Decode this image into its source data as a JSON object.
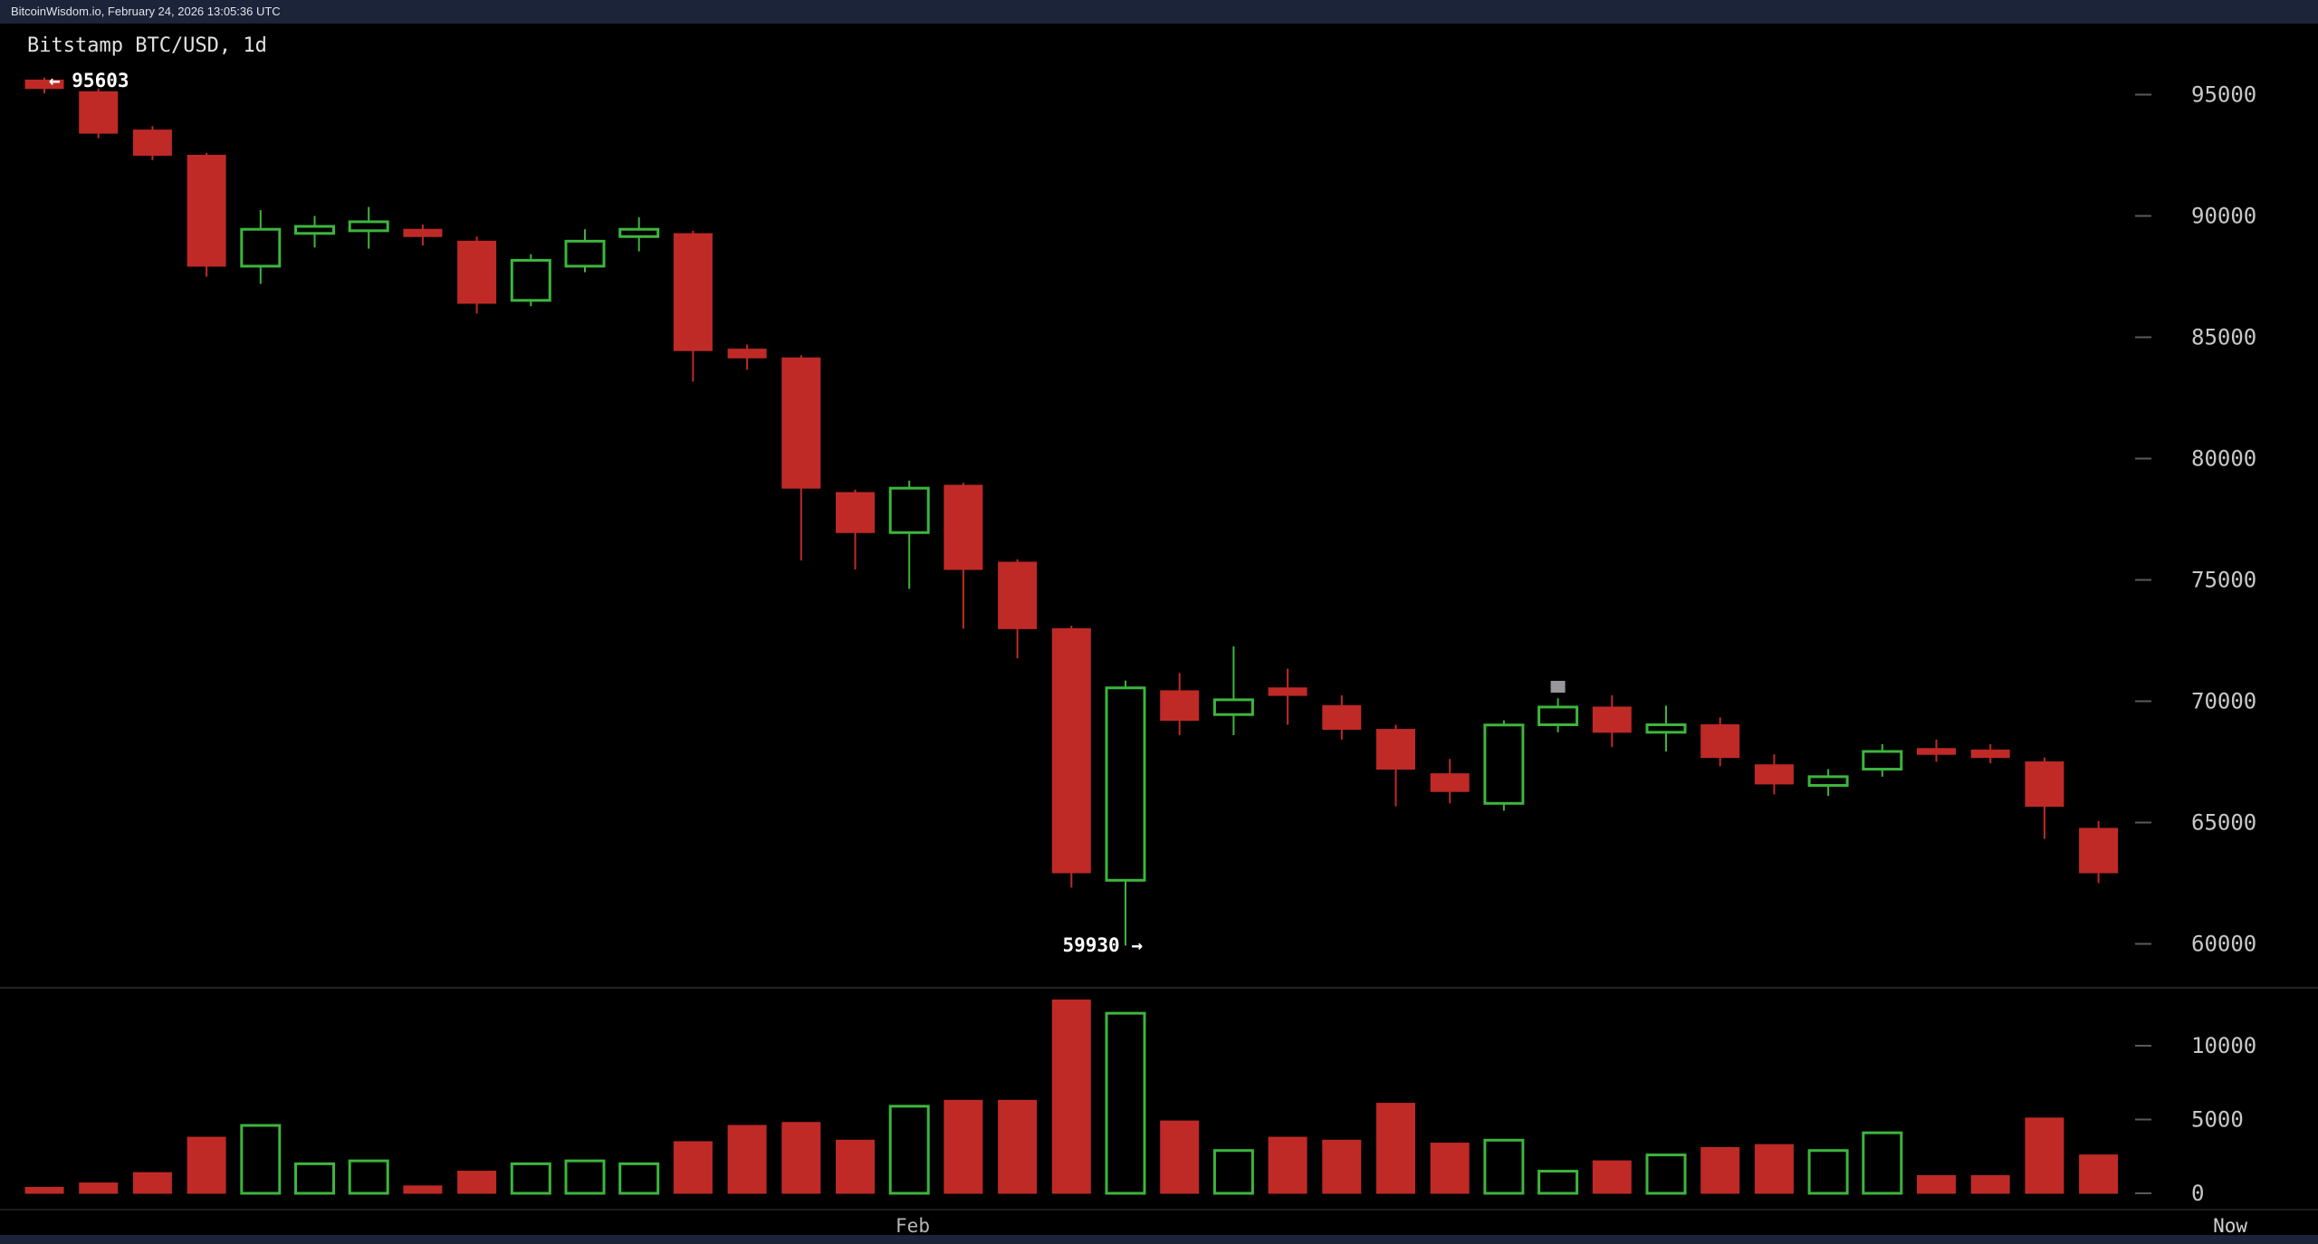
{
  "header": {
    "text": "BitcoinWisdom.io, February 24, 2026 13:05:36 UTC"
  },
  "chart_data": {
    "type": "candlestick",
    "title": "Bitstamp BTC/USD, 1d",
    "candle_format": [
      "open",
      "high",
      "low",
      "close",
      "volume"
    ],
    "candles": [
      [
        95600,
        95700,
        95050,
        95250,
        400
      ],
      [
        95120,
        95250,
        93200,
        93410,
        700
      ],
      [
        93540,
        93700,
        92300,
        92500,
        1400
      ],
      [
        92500,
        92600,
        87500,
        87930,
        3800
      ],
      [
        87930,
        90240,
        87200,
        89450,
        4600
      ],
      [
        89280,
        90000,
        88700,
        89570,
        2000
      ],
      [
        89390,
        90370,
        88650,
        89760,
        2200
      ],
      [
        89450,
        89640,
        88780,
        89150,
        500
      ],
      [
        88960,
        89150,
        85980,
        86400,
        1500
      ],
      [
        86520,
        88420,
        86280,
        88170,
        2000
      ],
      [
        87930,
        89450,
        87680,
        88960,
        2200
      ],
      [
        89150,
        89940,
        88540,
        89450,
        2000
      ],
      [
        89270,
        89390,
        83170,
        84450,
        3500
      ],
      [
        84510,
        84700,
        83660,
        84150,
        4600
      ],
      [
        84150,
        84260,
        75800,
        78780,
        4800
      ],
      [
        78600,
        78720,
        75430,
        76950,
        3600
      ],
      [
        76950,
        79090,
        74630,
        78780,
        5900
      ],
      [
        78900,
        79000,
        72990,
        75430,
        6300
      ],
      [
        75730,
        75850,
        71770,
        72990,
        6300
      ],
      [
        72990,
        73110,
        62320,
        62930,
        13100
      ],
      [
        62620,
        70850,
        59930,
        70550,
        12200
      ],
      [
        70430,
        71160,
        68600,
        69210,
        4900
      ],
      [
        69450,
        72260,
        68600,
        70060,
        2900
      ],
      [
        70550,
        71340,
        69030,
        70240,
        3800
      ],
      [
        69820,
        70240,
        68420,
        68840,
        3600
      ],
      [
        68840,
        69030,
        65670,
        67200,
        6100
      ],
      [
        67010,
        67620,
        65790,
        66280,
        3400
      ],
      [
        65790,
        69210,
        65490,
        69020,
        3600
      ],
      [
        69030,
        70120,
        68720,
        69760,
        1500
      ],
      [
        69760,
        70240,
        68110,
        68720,
        2200
      ],
      [
        68720,
        69820,
        67930,
        69030,
        2600
      ],
      [
        69030,
        69330,
        67320,
        67680,
        3100
      ],
      [
        67380,
        67810,
        66160,
        66590,
        3300
      ],
      [
        66530,
        67200,
        66100,
        66890,
        2900
      ],
      [
        67200,
        68230,
        66890,
        67930,
        4100
      ],
      [
        68050,
        68420,
        67500,
        67810,
        1200
      ],
      [
        67990,
        68230,
        67440,
        67680,
        1200
      ],
      [
        67500,
        67680,
        64330,
        65670,
        5100
      ],
      [
        64760,
        65060,
        62500,
        62930,
        2600
      ]
    ],
    "price_axis": {
      "ticks": [
        95000,
        90000,
        85000,
        80000,
        75000,
        70000,
        65000,
        60000
      ]
    },
    "volume_axis": {
      "ticks": [
        10000,
        5000,
        0
      ]
    },
    "x_axis": {
      "month_label": "Feb",
      "now_label": "Now"
    },
    "annotations": {
      "high_label": "← 95603",
      "high_value": 95603,
      "low_label": "59930 →",
      "low_value": 59930,
      "cursor_marker_candle_index": 28
    },
    "colors": {
      "up": "#3db53d",
      "down": "#bf2a26",
      "axis_text": "#c8c8c8",
      "tick_dash": "#5a5a5a",
      "annotation_text": "#ffffff",
      "month_text": "#b6b6b6",
      "now_text": "#d0d0d0",
      "bar_background": "#1b2438",
      "chart_background": "#000000"
    },
    "legend_position": "none",
    "grid": false
  }
}
